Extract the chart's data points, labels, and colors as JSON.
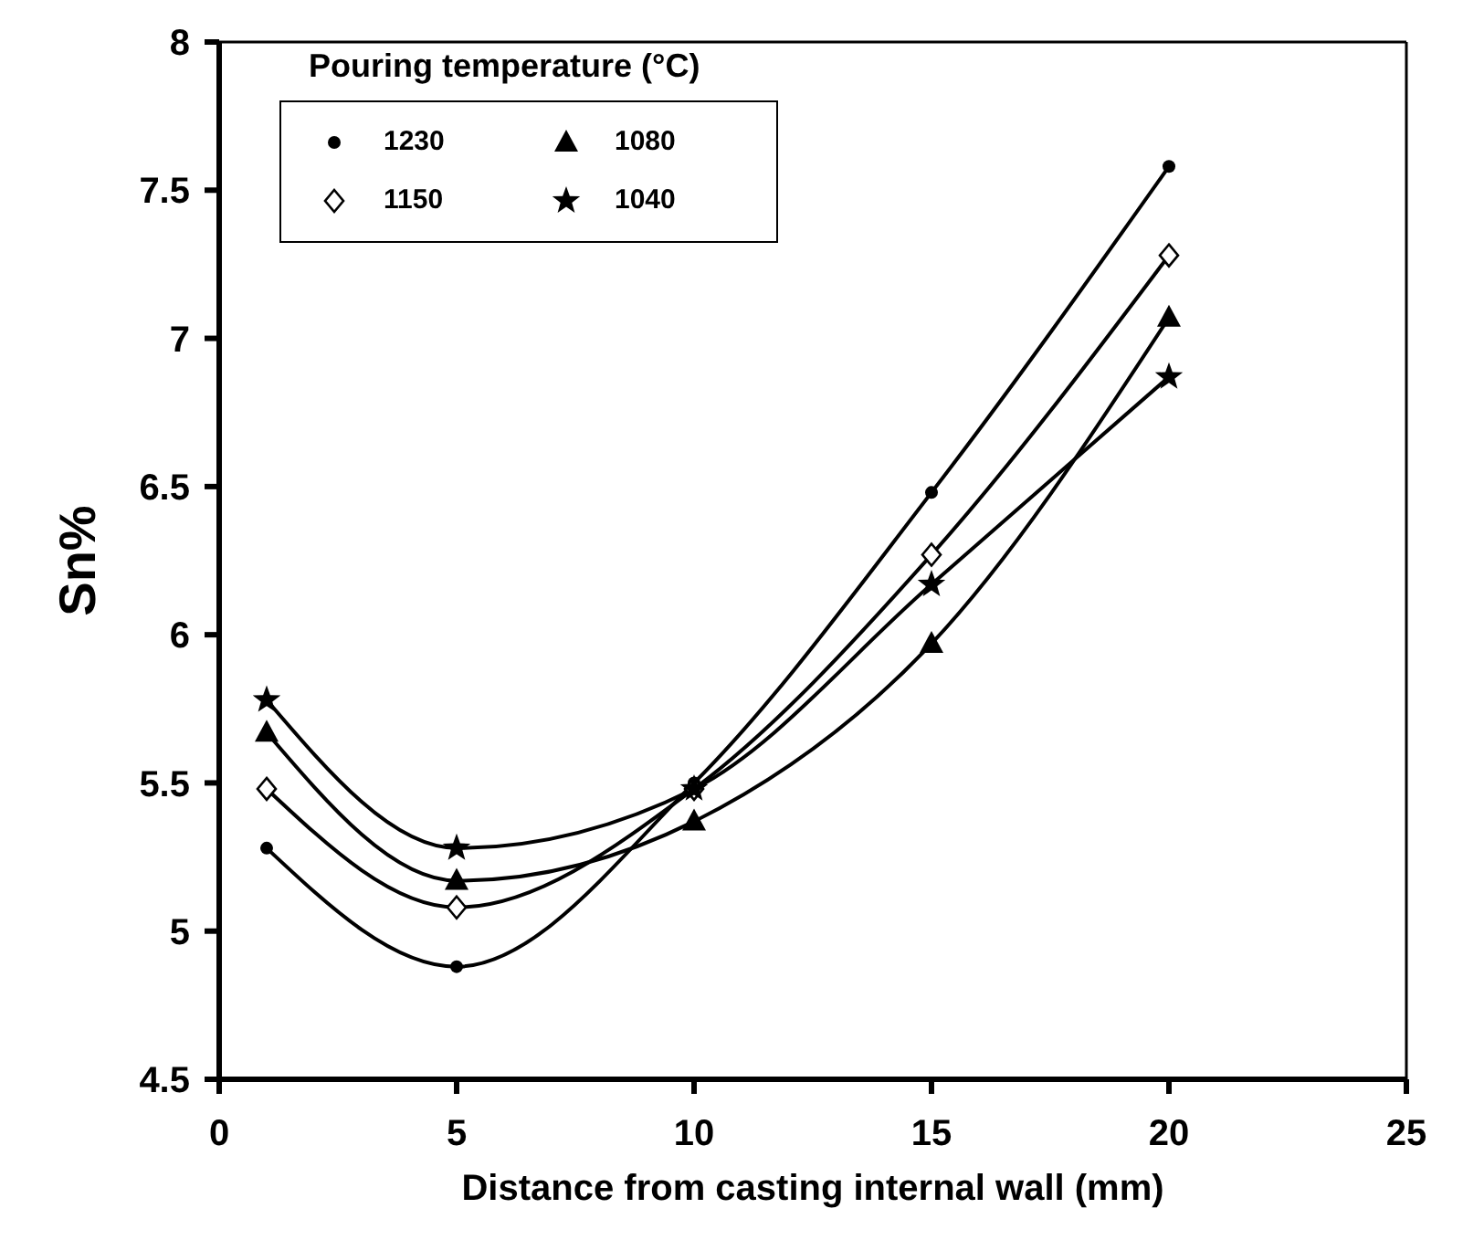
{
  "chart_data": {
    "type": "line",
    "xlabel": "Distance from casting internal wall (mm)",
    "ylabel": "Sn%",
    "legend_title": "Pouring temperature (°C)",
    "x": [
      1,
      5,
      10,
      15,
      20
    ],
    "series": [
      {
        "name": "1230",
        "color": "#000000",
        "marker": "circle",
        "values": [
          5.28,
          4.88,
          5.5,
          6.48,
          7.58
        ]
      },
      {
        "name": "1150",
        "color": "#000000",
        "marker": "diamond",
        "values": [
          5.48,
          5.08,
          5.48,
          6.27,
          7.28
        ]
      },
      {
        "name": "1080",
        "color": "#000000",
        "marker": "triangle",
        "values": [
          5.67,
          5.17,
          5.37,
          5.97,
          7.07
        ]
      },
      {
        "name": "1040",
        "color": "#000000",
        "marker": "star",
        "values": [
          5.78,
          5.28,
          5.48,
          6.17,
          6.87
        ]
      }
    ],
    "xlim": [
      0,
      25
    ],
    "xticks": [
      0,
      5,
      10,
      15,
      20,
      25
    ],
    "ylim": [
      4.5,
      8
    ],
    "yticks": [
      4.5,
      5,
      5.5,
      6,
      6.5,
      7,
      7.5,
      8
    ],
    "grid": false,
    "legend": "top left",
    "line_style": "solid"
  }
}
